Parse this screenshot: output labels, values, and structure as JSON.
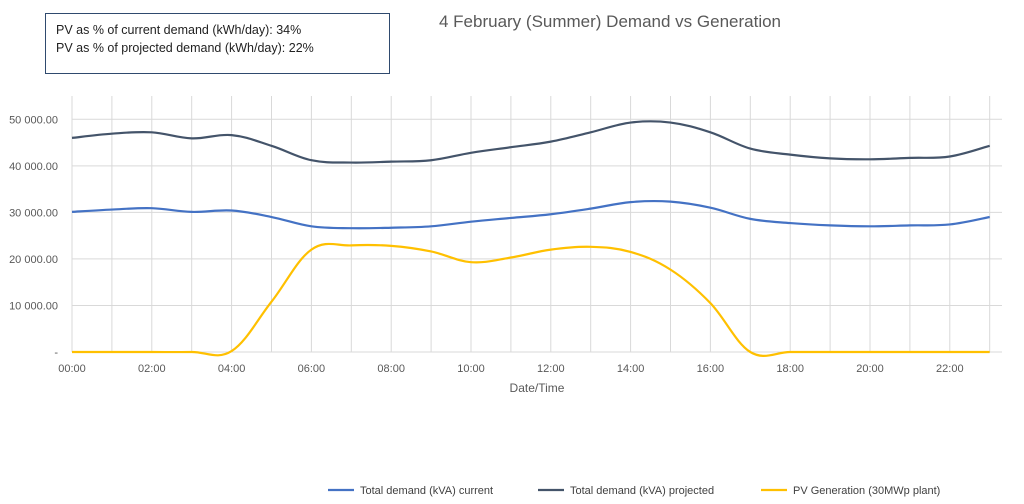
{
  "info_box": {
    "line1": "PV as % of current demand (kWh/day): 34%",
    "line2": "PV as % of projected demand (kWh/day): 22%"
  },
  "chart_data": {
    "type": "line",
    "title": "4 February (Summer) Demand vs Generation",
    "xlabel": "Date/Time",
    "ylabel": "",
    "ylim": [
      0,
      55000
    ],
    "y_ticks": [
      0,
      10000,
      20000,
      30000,
      40000,
      50000
    ],
    "y_tick_labels": [
      "-",
      "10 000.00",
      "20 000.00",
      "30 000.00",
      "40 000.00",
      "50 000.00"
    ],
    "x_tick_labels": [
      "00:00",
      "02:00",
      "04:00",
      "06:00",
      "08:00",
      "10:00",
      "12:00",
      "14:00",
      "16:00",
      "18:00",
      "20:00",
      "22:00"
    ],
    "x": [
      0,
      1,
      2,
      3,
      4,
      5,
      6,
      7,
      8,
      9,
      10,
      11,
      12,
      13,
      14,
      15,
      16,
      17,
      18,
      19,
      20,
      21,
      22,
      23
    ],
    "grid": true,
    "legend_position": "bottom",
    "series": [
      {
        "name": "Total demand (kVA) current",
        "color": "#4472C4",
        "values": [
          30100,
          30600,
          30900,
          30100,
          30400,
          29000,
          27000,
          26600,
          26700,
          27000,
          28000,
          28800,
          29600,
          30800,
          32200,
          32300,
          31000,
          28600,
          27700,
          27200,
          27000,
          27200,
          27400,
          29000
        ]
      },
      {
        "name": "Total demand (kVA) projected",
        "color": "#44546A",
        "values": [
          46000,
          46900,
          47200,
          45900,
          46600,
          44300,
          41200,
          40700,
          40900,
          41200,
          42800,
          44000,
          45200,
          47200,
          49300,
          49300,
          47200,
          43700,
          42400,
          41600,
          41400,
          41700,
          42000,
          44300
        ]
      },
      {
        "name": "PV Generation (30MWp plant)",
        "color": "#FFC000",
        "values": [
          0,
          0,
          0,
          0,
          200,
          10800,
          22000,
          22900,
          22800,
          21600,
          19300,
          20300,
          22000,
          22600,
          21500,
          17700,
          10500,
          0,
          0,
          0,
          0,
          0,
          0,
          0
        ]
      }
    ]
  }
}
